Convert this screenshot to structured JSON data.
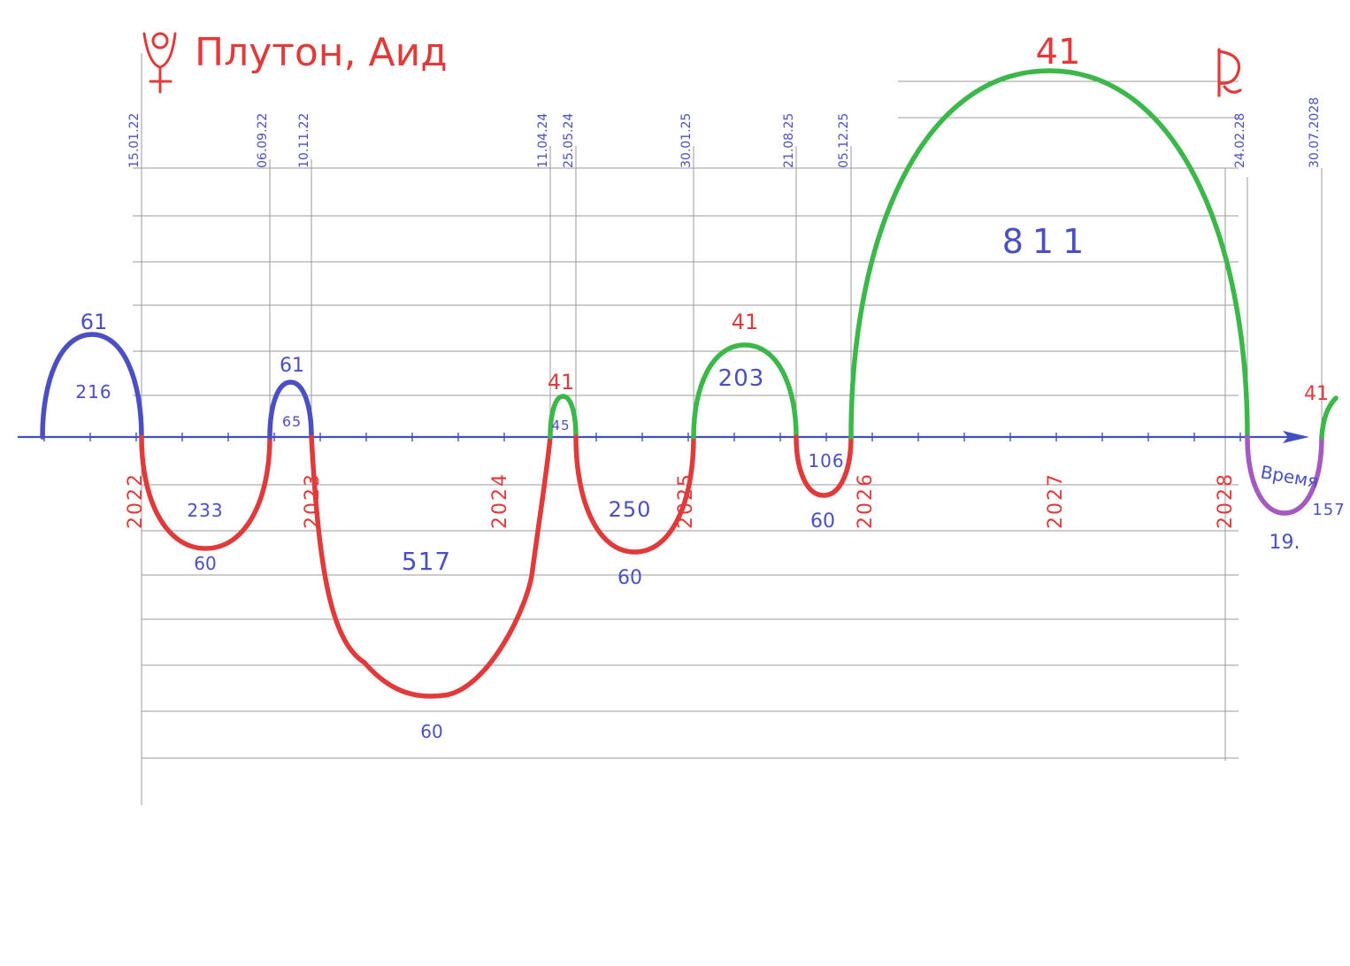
{
  "title": "Плутон, Аид",
  "colors": {
    "blue": "#4a4fc4",
    "red": "#e03a3a",
    "green": "#3cb84a",
    "purple": "#a45ac0",
    "axis": "#4050c0",
    "grid": "#9a9a9a",
    "dateText": "#4a4fc4",
    "yearText": "#e03a3a"
  },
  "icons": {
    "planet_symbol": "pluto-symbol-icon",
    "retrograde_mark": "retrograde-p-icon"
  },
  "axis_label": "Время",
  "chart_data": {
    "type": "line",
    "x_axis": "date",
    "years": [
      "2022",
      "2023",
      "2024",
      "2025",
      "2026",
      "2027",
      "2028"
    ],
    "dates": [
      "15.01.22",
      "06.09.22",
      "10.11.22",
      "11.04.24",
      "25.05.24",
      "30.01.25",
      "21.08.25",
      "05.12.25",
      "24.02.28",
      "30.07.2028"
    ],
    "segments": [
      {
        "color": "blue",
        "direction": "up",
        "start": "",
        "end": "2022-01-15",
        "peak_label": "61",
        "duration_label": "216"
      },
      {
        "color": "red",
        "direction": "down",
        "start": "2022-01-15",
        "end": "2022-09-06",
        "peak_label": "60",
        "duration_label": "233"
      },
      {
        "color": "blue",
        "direction": "up",
        "start": "2022-09-06",
        "end": "2022-11-10",
        "peak_label": "61",
        "duration_label": "65"
      },
      {
        "color": "red",
        "direction": "down",
        "start": "2022-11-10",
        "end": "2024-04-11",
        "peak_label": "60",
        "duration_label": "517"
      },
      {
        "color": "green",
        "direction": "up",
        "start": "2024-04-11",
        "end": "2024-05-25",
        "peak_label": "41",
        "duration_label": "45"
      },
      {
        "color": "red",
        "direction": "down",
        "start": "2024-05-25",
        "end": "2025-01-30",
        "peak_label": "60",
        "duration_label": "250"
      },
      {
        "color": "green",
        "direction": "up",
        "start": "2025-01-30",
        "end": "2025-08-21",
        "peak_label": "41",
        "duration_label": "203"
      },
      {
        "color": "red",
        "direction": "down",
        "start": "2025-08-21",
        "end": "2025-12-05",
        "peak_label": "60",
        "duration_label": "106"
      },
      {
        "color": "green",
        "direction": "up",
        "start": "2025-12-05",
        "end": "2028-02-24",
        "peak_label": "41",
        "duration_label": "811"
      },
      {
        "color": "purple",
        "direction": "down",
        "start": "2028-02-24",
        "end": "2028-07-30",
        "peak_label": "19.",
        "duration_label": "157"
      },
      {
        "color": "green",
        "direction": "up",
        "start": "2028-07-30",
        "end": "",
        "peak_label": "41",
        "duration_label": ""
      }
    ]
  }
}
